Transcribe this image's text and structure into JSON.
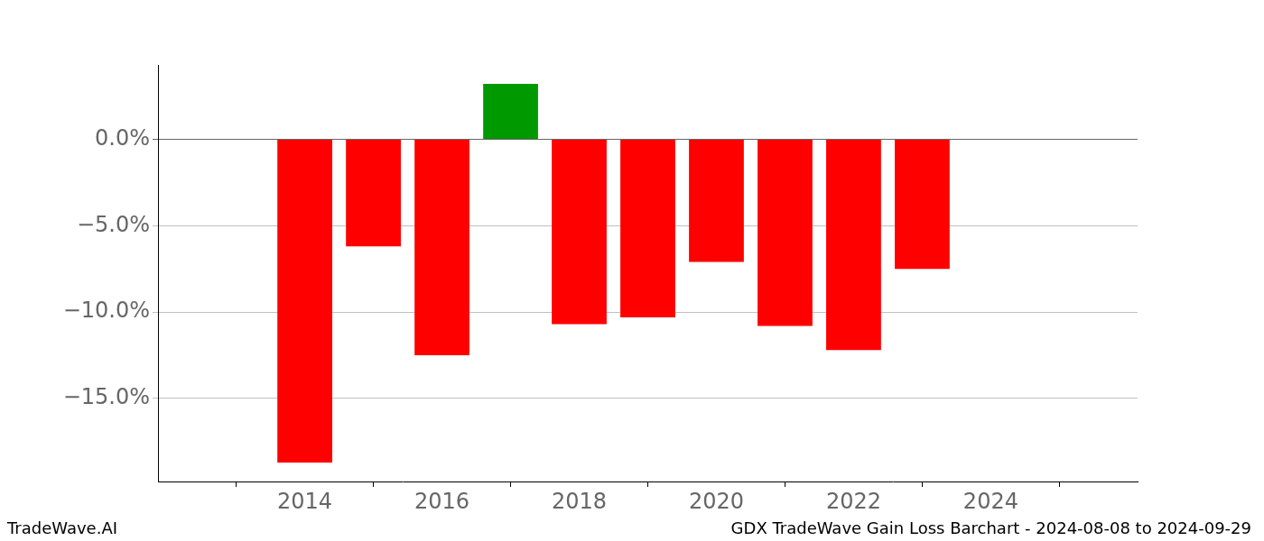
{
  "chart_data": {
    "type": "bar",
    "title": "GDX TradeWave Gain Loss Barchart - 2024-08-08 to 2024-09-29",
    "annotations": [
      "TradeWave.AI"
    ],
    "x": [
      2014,
      2015,
      2016,
      2017,
      2018,
      2019,
      2020,
      2021,
      2022,
      2023
    ],
    "values": [
      -18.7,
      -6.2,
      -12.5,
      3.2,
      -10.7,
      -10.3,
      -7.1,
      -10.8,
      -12.2,
      -7.5
    ],
    "colors": [
      "#ff0000",
      "#ff0000",
      "#ff0000",
      "#009900",
      "#ff0000",
      "#ff0000",
      "#ff0000",
      "#ff0000",
      "#ff0000",
      "#ff0000"
    ],
    "xlim": [
      2013.05,
      2024.95
    ],
    "xticks": [
      2014,
      2016,
      2018,
      2020,
      2022,
      2024
    ],
    "ylim": [
      -19.8,
      4.3
    ],
    "yticks": [
      {
        "value": -15,
        "label": "−15.0%"
      },
      {
        "value": -10,
        "label": "−10.0%"
      },
      {
        "value": -5,
        "label": "−5.0%"
      },
      {
        "value": 0,
        "label": "0.0%"
      }
    ],
    "grid": true
  }
}
